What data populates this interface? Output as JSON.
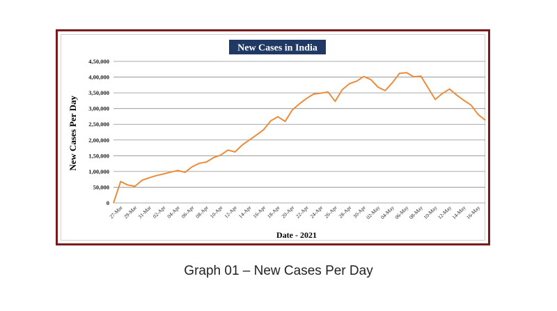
{
  "caption": "Graph 01 – New Cases Per Day",
  "colors": {
    "line": "#ed8b3a",
    "frame": "#7b1a1a",
    "title_bg": "#1f3864",
    "title_fg": "#ffffff",
    "grid": "#8c8c8c"
  },
  "chart_data": {
    "type": "line",
    "title": "New Cases in India",
    "xlabel": "Date - 2021",
    "ylabel": "New Cases Per Day",
    "ylim": [
      0,
      450000
    ],
    "yticks": [
      {
        "value": 0,
        "label": "0"
      },
      {
        "value": 50000,
        "label": "50,000"
      },
      {
        "value": 100000,
        "label": "1,00,000"
      },
      {
        "value": 150000,
        "label": "1,50,000"
      },
      {
        "value": 200000,
        "label": "2,00,000"
      },
      {
        "value": 250000,
        "label": "2,50,000"
      },
      {
        "value": 300000,
        "label": "3,00,000"
      },
      {
        "value": 350000,
        "label": "3,50,000"
      },
      {
        "value": 400000,
        "label": "4,00,000"
      },
      {
        "value": 450000,
        "label": "4,50,000"
      }
    ],
    "grid": true,
    "legend": "none",
    "xtick_labels": [
      "27-Mar",
      "29-Mar",
      "31-Mar",
      "02-Apr",
      "04-Apr",
      "06-Apr",
      "08-Apr",
      "10-Apr",
      "12-Apr",
      "14-Apr",
      "16-Apr",
      "18-Apr",
      "20-Apr",
      "22-Apr",
      "24-Apr",
      "26-Apr",
      "28-Apr",
      "30-Apr",
      "02-May",
      "04-May",
      "06-May",
      "08-May",
      "10-May",
      "12-May",
      "14-May",
      "16-May"
    ],
    "x": [
      "26-Mar",
      "27-Mar",
      "28-Mar",
      "29-Mar",
      "30-Mar",
      "31-Mar",
      "01-Apr",
      "02-Apr",
      "03-Apr",
      "04-Apr",
      "05-Apr",
      "06-Apr",
      "07-Apr",
      "08-Apr",
      "09-Apr",
      "10-Apr",
      "11-Apr",
      "12-Apr",
      "13-Apr",
      "14-Apr",
      "15-Apr",
      "16-Apr",
      "17-Apr",
      "18-Apr",
      "19-Apr",
      "20-Apr",
      "21-Apr",
      "22-Apr",
      "23-Apr",
      "24-Apr",
      "25-Apr",
      "26-Apr",
      "27-Apr",
      "28-Apr",
      "29-Apr",
      "30-Apr",
      "01-May",
      "02-May",
      "03-May",
      "04-May",
      "05-May",
      "06-May",
      "07-May",
      "08-May",
      "09-May",
      "10-May",
      "11-May",
      "12-May",
      "13-May",
      "14-May",
      "15-May",
      "16-May",
      "17-May"
    ],
    "series": [
      {
        "values": [
          0,
          68000,
          57000,
          53000,
          72000,
          80000,
          87000,
          92000,
          98000,
          103000,
          97000,
          115000,
          126000,
          130000,
          144000,
          152000,
          168000,
          162000,
          184000,
          200000,
          216000,
          233000,
          261000,
          274000,
          259000,
          295000,
          315000,
          332000,
          346000,
          349000,
          353000,
          323000,
          360000,
          379000,
          387000,
          402000,
          392000,
          368000,
          357000,
          382000,
          412000,
          414000,
          401000,
          403000,
          366000,
          329000,
          348000,
          362000,
          343000,
          326000,
          311000,
          281000,
          263000
        ]
      }
    ]
  }
}
